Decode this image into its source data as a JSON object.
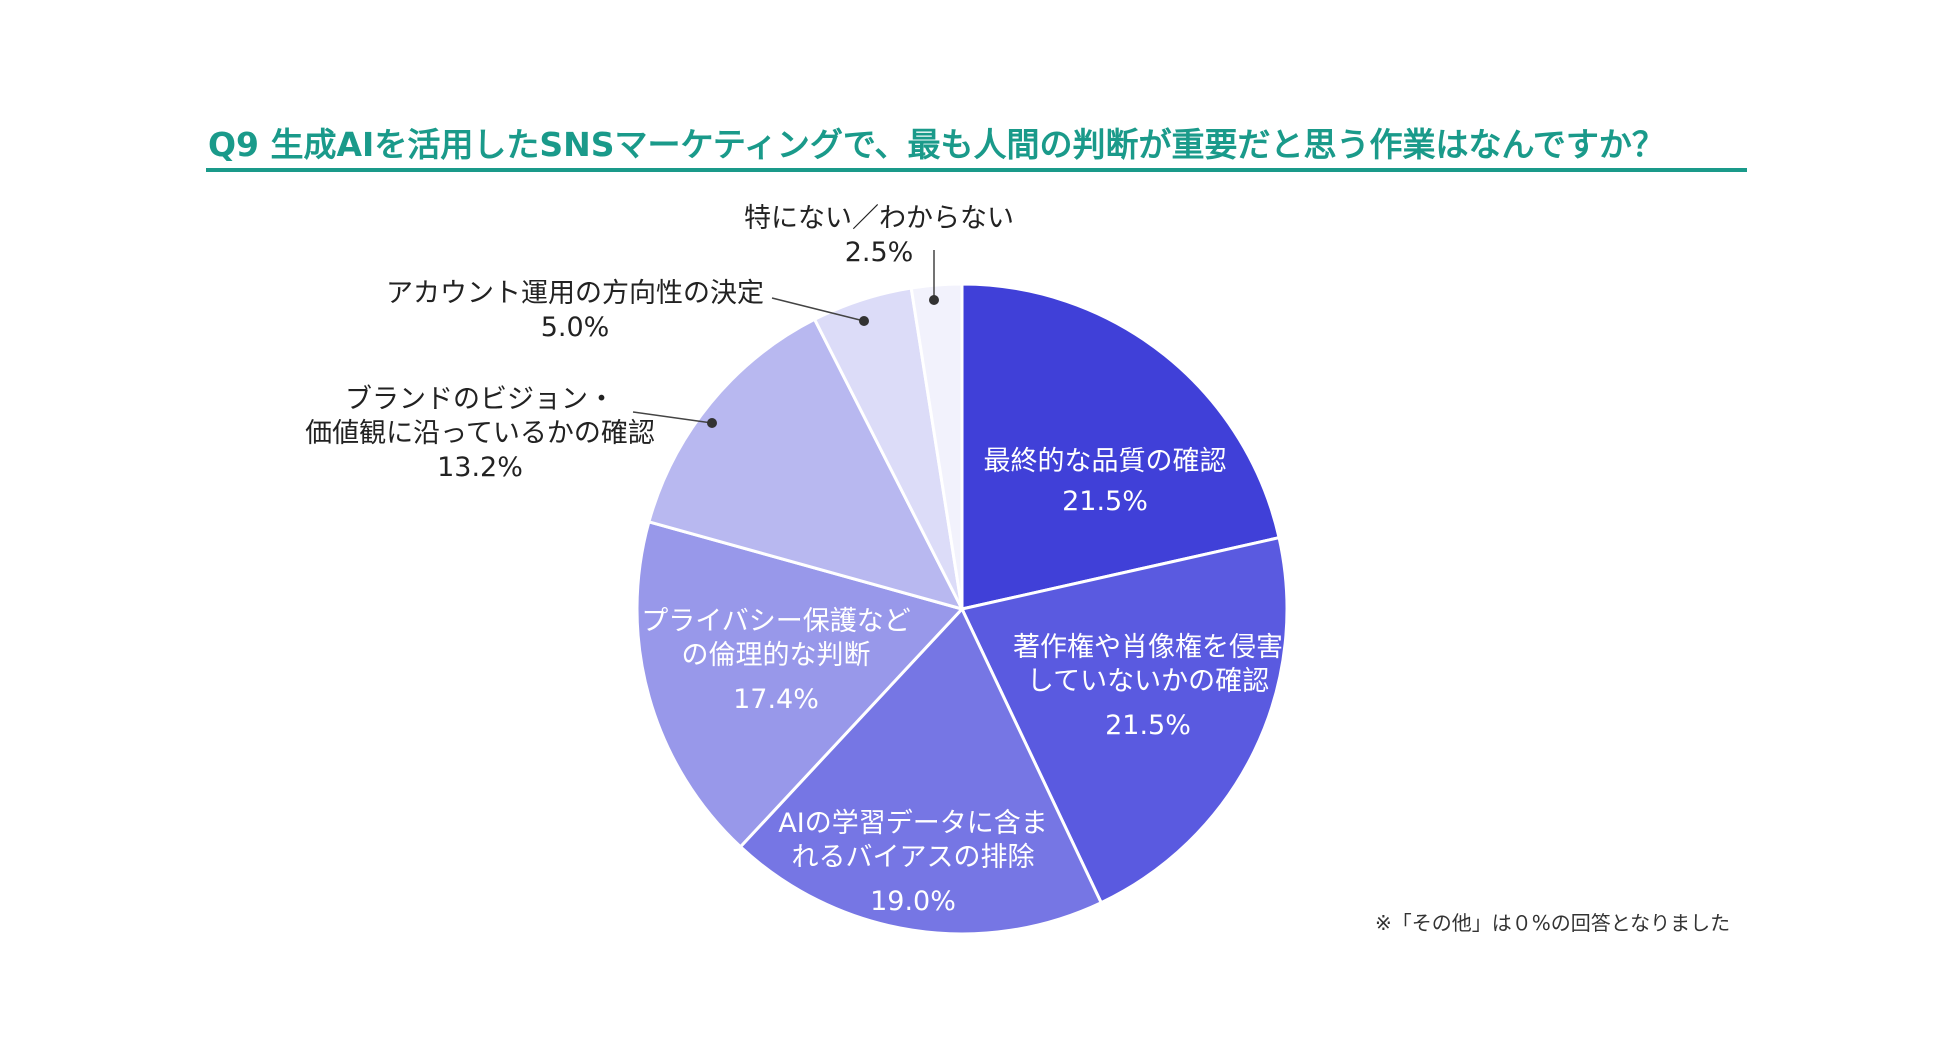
{
  "chart_data": {
    "type": "pie",
    "title": "Q9 生成AIを活用したSNSマーケティングで、最も人間の判断が重要だと思う作業はなんですか？",
    "unit": "%",
    "slices": [
      {
        "label_lines": [
          "最終的な品質の確認"
        ],
        "value": 21.5,
        "value_label": "21.5%",
        "color": "#4040d8"
      },
      {
        "label_lines": [
          "著作権や肖像権を侵害",
          "していないかの確認"
        ],
        "value": 21.5,
        "value_label": "21.5%",
        "color": "#5a5ae0"
      },
      {
        "label_lines": [
          "AIの学習データに含ま",
          "れるバイアスの排除"
        ],
        "value": 19.0,
        "value_label": "19.0%",
        "color": "#7676e4"
      },
      {
        "label_lines": [
          "プライバシー保護など",
          "の倫理的な判断"
        ],
        "value": 17.4,
        "value_label": "17.4%",
        "color": "#9898ea"
      },
      {
        "label_lines": [
          "ブランドのビジョン・",
          "価値観に沿っているかの確認"
        ],
        "value": 13.2,
        "value_label": "13.2%",
        "color": "#b8b8f0"
      },
      {
        "label_lines": [
          "アカウント運用の方向性の決定"
        ],
        "value": 5.0,
        "value_label": "5.0%",
        "color": "#dcdcf8"
      },
      {
        "label_lines": [
          "特にない／わからない"
        ],
        "value": 2.5,
        "value_label": "2.5%",
        "color": "#f2f2fc"
      }
    ]
  },
  "footnote": "※「その他」は０%の回答となりました"
}
